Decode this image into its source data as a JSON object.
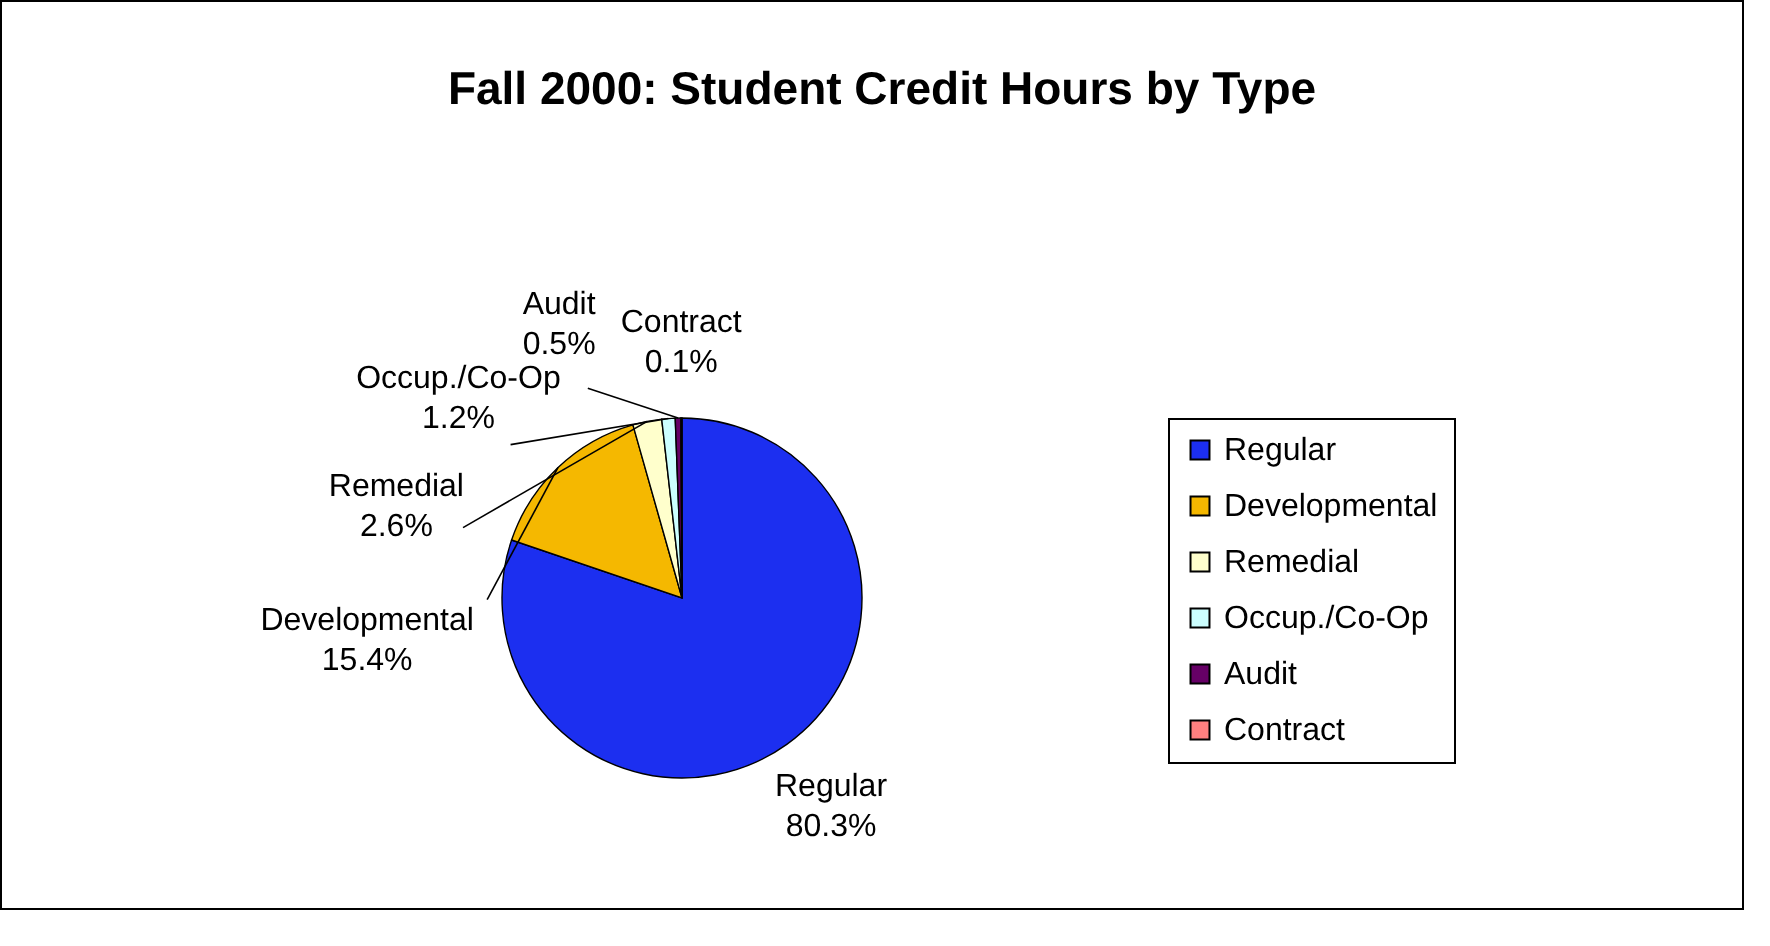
{
  "chart_data": {
    "type": "pie",
    "title": "Fall 2000: Student Credit Hours by Type",
    "categories": [
      "Regular",
      "Developmental",
      "Remedial",
      "Occup./Co-Op",
      "Audit",
      "Contract"
    ],
    "values": [
      80.3,
      15.4,
      2.6,
      1.2,
      0.5,
      0.1
    ],
    "value_labels": [
      "80.3%",
      "15.4%",
      "2.6%",
      "1.2%",
      "0.5%",
      "0.1%"
    ],
    "colors": [
      "#1c2ff0",
      "#f5b800",
      "#ffffcc",
      "#ccffff",
      "#660066",
      "#ff8080"
    ],
    "legend": "right"
  }
}
